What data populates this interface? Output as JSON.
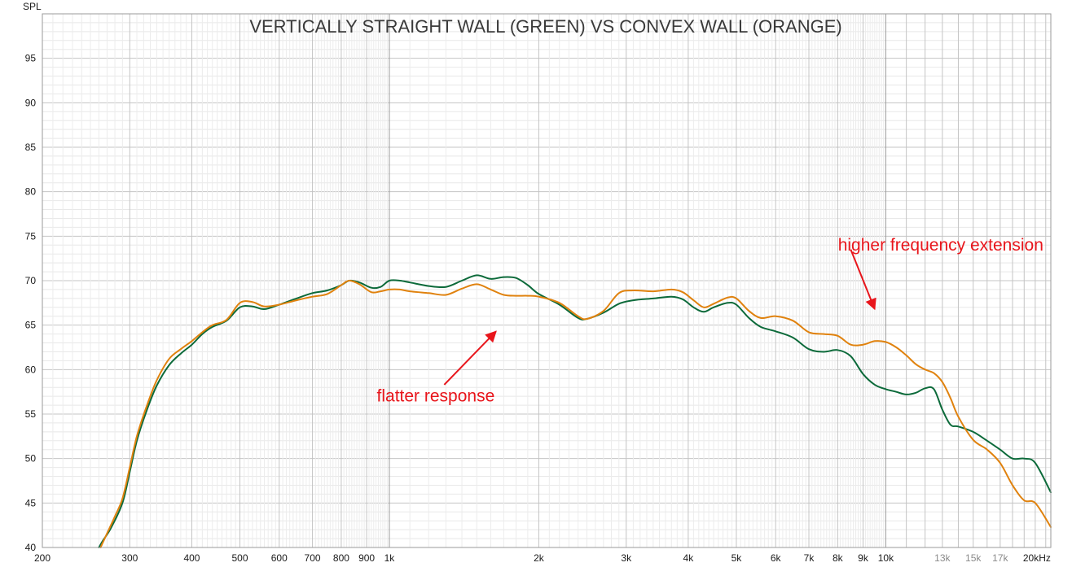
{
  "chart_data": {
    "type": "line",
    "title": "VERTICALLY STRAIGHT WALL (GREEN) VS CONVEX WALL (ORANGE)",
    "ylabel": "SPL",
    "xscale": "log",
    "xlim": [
      200,
      21500
    ],
    "ylim": [
      40,
      100
    ],
    "grid": true,
    "x_ticks": [
      {
        "value": 200,
        "label": "200"
      },
      {
        "value": 300,
        "label": "300"
      },
      {
        "value": 400,
        "label": "400"
      },
      {
        "value": 500,
        "label": "500"
      },
      {
        "value": 600,
        "label": "600"
      },
      {
        "value": 700,
        "label": "700"
      },
      {
        "value": 800,
        "label": "800"
      },
      {
        "value": 900,
        "label": "900"
      },
      {
        "value": 1000,
        "label": "1k"
      },
      {
        "value": 2000,
        "label": "2k"
      },
      {
        "value": 3000,
        "label": "3k"
      },
      {
        "value": 4000,
        "label": "4k"
      },
      {
        "value": 5000,
        "label": "5k"
      },
      {
        "value": 6000,
        "label": "6k"
      },
      {
        "value": 7000,
        "label": "7k"
      },
      {
        "value": 8000,
        "label": "8k"
      },
      {
        "value": 9000,
        "label": "9k"
      },
      {
        "value": 10000,
        "label": "10k"
      },
      {
        "value": 13000,
        "label": "13k"
      },
      {
        "value": 15000,
        "label": "15k"
      },
      {
        "value": 17000,
        "label": "17k"
      },
      {
        "value": 20000,
        "label": "20kHz"
      }
    ],
    "y_ticks": [
      {
        "value": 40,
        "label": "40"
      },
      {
        "value": 45,
        "label": "45"
      },
      {
        "value": 50,
        "label": "50"
      },
      {
        "value": 55,
        "label": "55"
      },
      {
        "value": 60,
        "label": "60"
      },
      {
        "value": 65,
        "label": "65"
      },
      {
        "value": 70,
        "label": "70"
      },
      {
        "value": 75,
        "label": "75"
      },
      {
        "value": 80,
        "label": "80"
      },
      {
        "value": 85,
        "label": "85"
      },
      {
        "value": 90,
        "label": "90"
      },
      {
        "value": 95,
        "label": "95"
      }
    ],
    "series": [
      {
        "color": "#0c6a3a",
        "points": [
          [
            260,
            40
          ],
          [
            265,
            40.8
          ],
          [
            275,
            42.2
          ],
          [
            290,
            45
          ],
          [
            300,
            48.5
          ],
          [
            310,
            52
          ],
          [
            325,
            55.5
          ],
          [
            340,
            58.2
          ],
          [
            360,
            60.5
          ],
          [
            380,
            61.8
          ],
          [
            400,
            62.8
          ],
          [
            420,
            64
          ],
          [
            440,
            64.8
          ],
          [
            470,
            65.5
          ],
          [
            500,
            67
          ],
          [
            530,
            67.1
          ],
          [
            560,
            66.8
          ],
          [
            600,
            67.3
          ],
          [
            650,
            68
          ],
          [
            700,
            68.6
          ],
          [
            750,
            68.9
          ],
          [
            800,
            69.5
          ],
          [
            830,
            70
          ],
          [
            870,
            69.8
          ],
          [
            920,
            69.2
          ],
          [
            960,
            69.3
          ],
          [
            1000,
            70
          ],
          [
            1050,
            70
          ],
          [
            1100,
            69.8
          ],
          [
            1200,
            69.4
          ],
          [
            1300,
            69.3
          ],
          [
            1400,
            70
          ],
          [
            1500,
            70.6
          ],
          [
            1600,
            70.2
          ],
          [
            1700,
            70.4
          ],
          [
            1800,
            70.3
          ],
          [
            1900,
            69.5
          ],
          [
            2000,
            68.5
          ],
          [
            2200,
            67.3
          ],
          [
            2400,
            65.8
          ],
          [
            2500,
            65.7
          ],
          [
            2700,
            66.4
          ],
          [
            2900,
            67.4
          ],
          [
            3100,
            67.8
          ],
          [
            3400,
            68
          ],
          [
            3700,
            68.2
          ],
          [
            3900,
            67.9
          ],
          [
            4100,
            67
          ],
          [
            4300,
            66.5
          ],
          [
            4500,
            67
          ],
          [
            4800,
            67.5
          ],
          [
            5000,
            67.3
          ],
          [
            5300,
            65.8
          ],
          [
            5600,
            64.8
          ],
          [
            6000,
            64.3
          ],
          [
            6500,
            63.6
          ],
          [
            7000,
            62.3
          ],
          [
            7500,
            62
          ],
          [
            8000,
            62.2
          ],
          [
            8500,
            61.5
          ],
          [
            9000,
            59.5
          ],
          [
            9500,
            58.3
          ],
          [
            10000,
            57.8
          ],
          [
            10500,
            57.5
          ],
          [
            11000,
            57.2
          ],
          [
            11500,
            57.4
          ],
          [
            12000,
            57.9
          ],
          [
            12500,
            57.8
          ],
          [
            13000,
            55.5
          ],
          [
            13500,
            53.8
          ],
          [
            14000,
            53.6
          ],
          [
            15000,
            53
          ],
          [
            16000,
            52
          ],
          [
            17000,
            51
          ],
          [
            18000,
            50
          ],
          [
            19000,
            50
          ],
          [
            20000,
            49.5
          ],
          [
            21500,
            46.2
          ]
        ]
      },
      {
        "color": "#e0820e",
        "points": [
          [
            262,
            40
          ],
          [
            268,
            41.2
          ],
          [
            280,
            43.5
          ],
          [
            290,
            45.5
          ],
          [
            300,
            49
          ],
          [
            310,
            52.5
          ],
          [
            325,
            56
          ],
          [
            340,
            58.8
          ],
          [
            360,
            61.2
          ],
          [
            380,
            62.3
          ],
          [
            400,
            63.2
          ],
          [
            420,
            64.2
          ],
          [
            440,
            65
          ],
          [
            470,
            65.6
          ],
          [
            500,
            67.5
          ],
          [
            530,
            67.6
          ],
          [
            560,
            67.1
          ],
          [
            600,
            67.3
          ],
          [
            650,
            67.8
          ],
          [
            700,
            68.2
          ],
          [
            750,
            68.5
          ],
          [
            800,
            69.5
          ],
          [
            830,
            70
          ],
          [
            870,
            69.6
          ],
          [
            920,
            68.7
          ],
          [
            960,
            68.8
          ],
          [
            1000,
            69
          ],
          [
            1050,
            69
          ],
          [
            1100,
            68.8
          ],
          [
            1200,
            68.6
          ],
          [
            1300,
            68.4
          ],
          [
            1400,
            69.1
          ],
          [
            1500,
            69.6
          ],
          [
            1600,
            69
          ],
          [
            1700,
            68.4
          ],
          [
            1800,
            68.3
          ],
          [
            1900,
            68.3
          ],
          [
            2000,
            68.2
          ],
          [
            2200,
            67.5
          ],
          [
            2400,
            66
          ],
          [
            2500,
            65.7
          ],
          [
            2700,
            66.6
          ],
          [
            2900,
            68.6
          ],
          [
            3100,
            68.9
          ],
          [
            3400,
            68.8
          ],
          [
            3700,
            69
          ],
          [
            3900,
            68.7
          ],
          [
            4100,
            67.8
          ],
          [
            4300,
            67
          ],
          [
            4500,
            67.4
          ],
          [
            4800,
            68.1
          ],
          [
            5000,
            68
          ],
          [
            5300,
            66.6
          ],
          [
            5600,
            65.8
          ],
          [
            6000,
            66
          ],
          [
            6500,
            65.5
          ],
          [
            7000,
            64.2
          ],
          [
            7500,
            64
          ],
          [
            8000,
            63.8
          ],
          [
            8500,
            62.8
          ],
          [
            9000,
            62.8
          ],
          [
            9500,
            63.2
          ],
          [
            10000,
            63.1
          ],
          [
            10500,
            62.5
          ],
          [
            11000,
            61.6
          ],
          [
            11500,
            60.6
          ],
          [
            12000,
            60
          ],
          [
            12500,
            59.6
          ],
          [
            13000,
            58.6
          ],
          [
            13500,
            56.8
          ],
          [
            14000,
            54.7
          ],
          [
            15000,
            52.1
          ],
          [
            16000,
            51
          ],
          [
            17000,
            49.5
          ],
          [
            18000,
            47
          ],
          [
            19000,
            45.3
          ],
          [
            20000,
            45
          ],
          [
            21500,
            42.3
          ]
        ]
      }
    ],
    "annotations": [
      {
        "text": "flatter response",
        "color": "#e8151b",
        "text_at": [
          1240,
          56.4
        ],
        "arrow_from": [
          1290,
          58.3
        ],
        "arrow_to": [
          1640,
          64.3
        ]
      },
      {
        "text": "higher frequency extension",
        "color": "#e8151b",
        "text_at": [
          12900,
          73.4
        ],
        "arrow_from": [
          8500,
          73.5
        ],
        "arrow_to": [
          9500,
          66.8
        ]
      }
    ]
  }
}
